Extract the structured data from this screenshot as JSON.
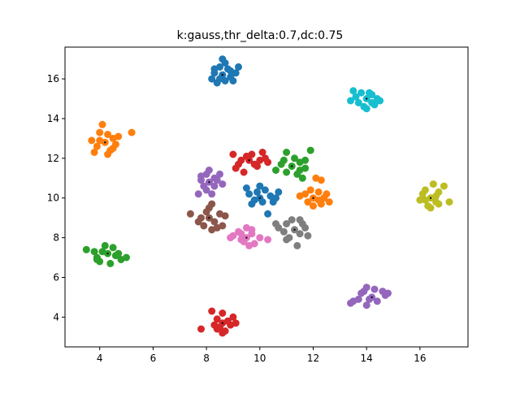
{
  "chart_data": {
    "type": "scatter",
    "title": "k:gauss,thr_delta:0.7,dc:0.75",
    "xlabel": "",
    "ylabel": "",
    "xlim": [
      2.7,
      17.8
    ],
    "ylim": [
      2.5,
      17.6
    ],
    "xticks": [
      4,
      6,
      8,
      10,
      12,
      14,
      16
    ],
    "yticks": [
      4,
      6,
      8,
      10,
      12,
      14,
      16
    ],
    "xtick_labels": [
      "4",
      "6",
      "8",
      "10",
      "12",
      "14",
      "16"
    ],
    "ytick_labels": [
      "4",
      "6",
      "8",
      "10",
      "12",
      "14",
      "16"
    ],
    "grid": false,
    "legend": "none",
    "series": [
      {
        "color": "#1f77b4",
        "center": [
          8.6,
          16.2
        ],
        "points": [
          [
            8.6,
            16.2
          ],
          [
            8.3,
            16.3
          ],
          [
            8.9,
            16.1
          ],
          [
            8.5,
            16.6
          ],
          [
            8.7,
            15.9
          ],
          [
            9.1,
            16.3
          ],
          [
            8.2,
            16.0
          ],
          [
            8.6,
            17.0
          ],
          [
            8.8,
            16.5
          ],
          [
            8.4,
            15.8
          ],
          [
            9.0,
            15.9
          ],
          [
            8.7,
            16.8
          ],
          [
            8.3,
            16.5
          ],
          [
            9.2,
            16.6
          ],
          [
            8.5,
            16.0
          ],
          [
            8.9,
            16.4
          ]
        ]
      },
      {
        "color": "#ff7f0e",
        "center": [
          4.2,
          12.8
        ],
        "points": [
          [
            4.2,
            12.8
          ],
          [
            3.9,
            12.6
          ],
          [
            4.5,
            13.0
          ],
          [
            4.0,
            13.3
          ],
          [
            4.4,
            12.4
          ],
          [
            4.1,
            13.7
          ],
          [
            3.7,
            12.9
          ],
          [
            4.6,
            12.7
          ],
          [
            5.2,
            13.3
          ],
          [
            4.3,
            12.2
          ],
          [
            3.8,
            12.3
          ],
          [
            4.7,
            13.1
          ],
          [
            4.5,
            12.5
          ],
          [
            4.0,
            12.9
          ],
          [
            4.3,
            13.2
          ]
        ]
      },
      {
        "color": "#2ca02c",
        "center": [
          4.3,
          7.2
        ],
        "points": [
          [
            4.3,
            7.2
          ],
          [
            3.5,
            7.4
          ],
          [
            3.9,
            7.0
          ],
          [
            4.1,
            7.3
          ],
          [
            4.6,
            7.1
          ],
          [
            4.5,
            7.5
          ],
          [
            4.0,
            6.8
          ],
          [
            4.8,
            6.9
          ],
          [
            5.0,
            7.0
          ],
          [
            4.4,
            6.7
          ],
          [
            3.8,
            7.3
          ],
          [
            4.2,
            7.6
          ],
          [
            4.7,
            7.2
          ],
          [
            3.9,
            6.9
          ]
        ]
      },
      {
        "color": "#d62728",
        "center": [
          8.6,
          3.7
        ],
        "points": [
          [
            8.6,
            3.7
          ],
          [
            7.8,
            3.4
          ],
          [
            8.4,
            3.9
          ],
          [
            8.9,
            3.6
          ],
          [
            8.2,
            4.3
          ],
          [
            8.6,
            4.2
          ],
          [
            9.0,
            4.0
          ],
          [
            8.7,
            3.3
          ],
          [
            8.5,
            3.5
          ],
          [
            8.8,
            3.8
          ],
          [
            8.3,
            3.6
          ],
          [
            9.1,
            3.7
          ],
          [
            8.6,
            3.2
          ],
          [
            8.4,
            3.4
          ]
        ]
      },
      {
        "color": "#9467bd",
        "center": [
          14.2,
          5.0
        ],
        "points": [
          [
            14.2,
            5.0
          ],
          [
            13.5,
            4.8
          ],
          [
            13.8,
            5.2
          ],
          [
            14.0,
            5.5
          ],
          [
            14.4,
            4.8
          ],
          [
            14.6,
            5.3
          ],
          [
            14.7,
            5.1
          ],
          [
            14.0,
            4.6
          ],
          [
            13.7,
            4.9
          ],
          [
            14.3,
            5.4
          ],
          [
            14.8,
            5.2
          ],
          [
            13.4,
            4.7
          ],
          [
            14.1,
            4.9
          ],
          [
            13.9,
            5.3
          ]
        ]
      },
      {
        "color": "#17becf",
        "center": [
          14.0,
          15.0
        ],
        "points": [
          [
            14.0,
            15.0
          ],
          [
            13.5,
            15.4
          ],
          [
            13.7,
            14.8
          ],
          [
            14.2,
            15.2
          ],
          [
            14.3,
            14.7
          ],
          [
            13.6,
            15.1
          ],
          [
            14.4,
            15.0
          ],
          [
            13.9,
            14.6
          ],
          [
            14.1,
            15.3
          ],
          [
            13.4,
            14.9
          ],
          [
            14.5,
            14.9
          ],
          [
            13.8,
            15.3
          ],
          [
            14.2,
            14.8
          ],
          [
            14.0,
            14.5
          ]
        ]
      },
      {
        "color": "#bcbd22",
        "center": [
          16.4,
          10.0
        ],
        "points": [
          [
            16.4,
            10.0
          ],
          [
            16.1,
            10.2
          ],
          [
            16.6,
            9.8
          ],
          [
            16.3,
            9.6
          ],
          [
            16.2,
            10.4
          ],
          [
            16.7,
            10.3
          ],
          [
            16.9,
            10.6
          ],
          [
            17.1,
            9.8
          ],
          [
            16.5,
            10.7
          ],
          [
            16.0,
            9.9
          ],
          [
            16.4,
            9.5
          ],
          [
            16.7,
            9.7
          ],
          [
            16.2,
            9.9
          ],
          [
            16.6,
            10.1
          ]
        ]
      },
      {
        "color": "#e377c2",
        "center": [
          9.5,
          8.0
        ],
        "points": [
          [
            9.5,
            8.0
          ],
          [
            9.0,
            8.1
          ],
          [
            9.3,
            7.9
          ],
          [
            9.7,
            8.2
          ],
          [
            9.5,
            8.5
          ],
          [
            9.8,
            7.7
          ],
          [
            9.2,
            8.3
          ],
          [
            10.0,
            8.0
          ],
          [
            10.3,
            7.9
          ],
          [
            9.4,
            7.8
          ],
          [
            9.6,
            7.6
          ],
          [
            8.9,
            8.0
          ],
          [
            9.7,
            8.4
          ],
          [
            9.3,
            8.2
          ]
        ]
      },
      {
        "color": "#8c564b",
        "center": [
          8.1,
          9.0
        ],
        "points": [
          [
            8.1,
            9.0
          ],
          [
            7.4,
            9.2
          ],
          [
            7.8,
            9.0
          ],
          [
            8.1,
            9.5
          ],
          [
            8.3,
            8.8
          ],
          [
            8.6,
            8.6
          ],
          [
            8.7,
            9.1
          ],
          [
            7.9,
            8.6
          ],
          [
            8.2,
            8.4
          ],
          [
            8.0,
            9.3
          ],
          [
            8.5,
            9.2
          ],
          [
            7.7,
            8.8
          ],
          [
            8.4,
            8.5
          ],
          [
            8.2,
            9.7
          ]
        ]
      },
      {
        "color": "#7f7f7f",
        "center": [
          11.3,
          8.4
        ],
        "points": [
          [
            11.3,
            8.4
          ],
          [
            10.7,
            8.5
          ],
          [
            11.0,
            8.7
          ],
          [
            11.5,
            8.9
          ],
          [
            11.7,
            8.5
          ],
          [
            11.8,
            8.1
          ],
          [
            11.1,
            8.0
          ],
          [
            11.4,
            7.6
          ],
          [
            10.9,
            8.3
          ],
          [
            11.6,
            8.7
          ],
          [
            10.6,
            8.7
          ],
          [
            11.2,
            8.9
          ],
          [
            11.0,
            7.9
          ],
          [
            11.5,
            8.2
          ]
        ]
      },
      {
        "color": "#1f77b4",
        "center": [
          10.0,
          10.0
        ],
        "points": [
          [
            10.0,
            10.0
          ],
          [
            9.6,
            10.2
          ],
          [
            9.8,
            9.9
          ],
          [
            10.2,
            10.4
          ],
          [
            10.4,
            10.1
          ],
          [
            10.5,
            9.8
          ],
          [
            9.5,
            10.5
          ],
          [
            10.0,
            10.6
          ],
          [
            10.3,
            9.2
          ],
          [
            10.7,
            10.3
          ],
          [
            9.7,
            9.7
          ],
          [
            10.1,
            9.8
          ],
          [
            9.9,
            10.3
          ],
          [
            10.6,
            10.0
          ]
        ]
      },
      {
        "color": "#ff7f0e",
        "center": [
          12.0,
          10.0
        ],
        "points": [
          [
            12.0,
            10.0
          ],
          [
            11.5,
            10.1
          ],
          [
            11.8,
            9.8
          ],
          [
            12.2,
            10.3
          ],
          [
            12.4,
            10.0
          ],
          [
            12.6,
            9.8
          ],
          [
            12.1,
            11.0
          ],
          [
            12.3,
            9.7
          ],
          [
            11.9,
            10.4
          ],
          [
            12.5,
            10.2
          ],
          [
            12.0,
            9.6
          ],
          [
            11.7,
            10.2
          ],
          [
            12.2,
            9.9
          ],
          [
            12.3,
            10.9
          ]
        ]
      },
      {
        "color": "#2ca02c",
        "center": [
          11.2,
          11.6
        ],
        "points": [
          [
            11.2,
            11.6
          ],
          [
            10.6,
            11.4
          ],
          [
            10.9,
            11.9
          ],
          [
            11.0,
            12.3
          ],
          [
            11.5,
            11.8
          ],
          [
            11.7,
            11.5
          ],
          [
            11.4,
            11.2
          ],
          [
            11.9,
            12.4
          ],
          [
            11.6,
            11.0
          ],
          [
            10.8,
            11.7
          ],
          [
            11.3,
            12.0
          ],
          [
            11.5,
            11.4
          ],
          [
            11.0,
            11.3
          ],
          [
            11.7,
            11.9
          ]
        ]
      },
      {
        "color": "#d62728",
        "center": [
          9.6,
          11.9
        ],
        "points": [
          [
            9.6,
            11.9
          ],
          [
            9.0,
            12.2
          ],
          [
            9.3,
            11.9
          ],
          [
            9.5,
            12.1
          ],
          [
            9.8,
            11.7
          ],
          [
            10.1,
            12.3
          ],
          [
            10.3,
            11.8
          ],
          [
            9.1,
            11.5
          ],
          [
            9.4,
            11.3
          ],
          [
            10.0,
            11.9
          ],
          [
            9.7,
            12.2
          ],
          [
            9.2,
            11.7
          ],
          [
            10.2,
            12.0
          ],
          [
            9.9,
            11.6
          ]
        ]
      },
      {
        "color": "#9467bd",
        "center": [
          8.1,
          10.8
        ],
        "points": [
          [
            8.1,
            10.8
          ],
          [
            7.8,
            10.9
          ],
          [
            8.0,
            11.2
          ],
          [
            8.3,
            10.6
          ],
          [
            8.5,
            11.2
          ],
          [
            8.2,
            10.2
          ],
          [
            7.7,
            10.2
          ],
          [
            8.4,
            10.9
          ],
          [
            7.9,
            10.6
          ],
          [
            8.1,
            11.4
          ],
          [
            8.6,
            10.7
          ],
          [
            8.0,
            10.4
          ],
          [
            8.3,
            11.0
          ],
          [
            7.8,
            11.1
          ]
        ]
      }
    ]
  }
}
